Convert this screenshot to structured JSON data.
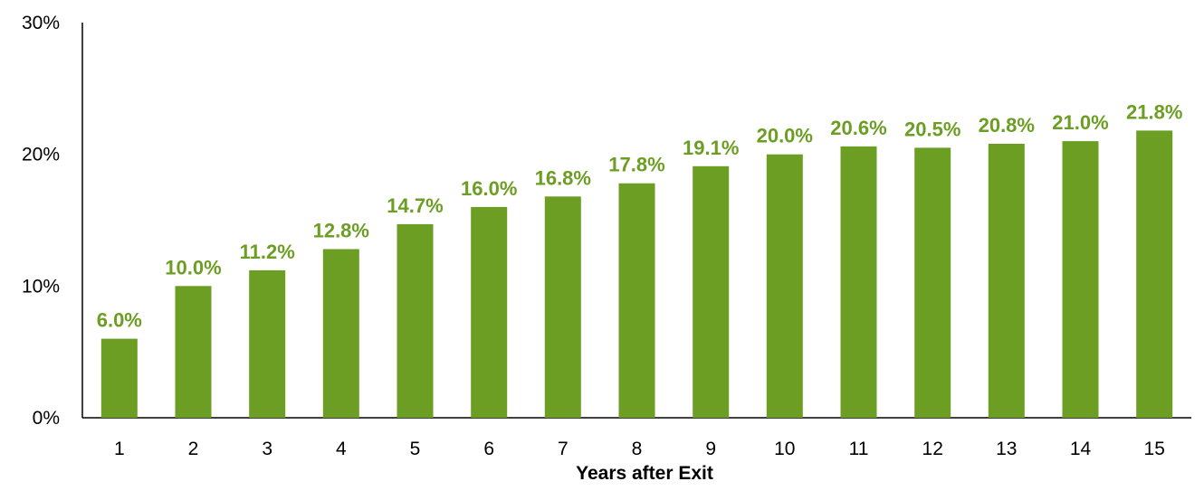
{
  "chart_data": {
    "type": "bar",
    "categories": [
      "1",
      "2",
      "3",
      "4",
      "5",
      "6",
      "7",
      "8",
      "9",
      "10",
      "11",
      "12",
      "13",
      "14",
      "15"
    ],
    "values": [
      6.0,
      10.0,
      11.2,
      12.8,
      14.7,
      16.0,
      16.8,
      17.8,
      19.1,
      20.0,
      20.6,
      20.5,
      20.8,
      21.0,
      21.8
    ],
    "data_labels": [
      "6.0%",
      "10.0%",
      "11.2%",
      "12.8%",
      "14.7%",
      "16.0%",
      "16.8%",
      "17.8%",
      "19.1%",
      "20.0%",
      "20.6%",
      "20.5%",
      "20.8%",
      "21.0%",
      "21.8%"
    ],
    "xlabel": "Years after Exit",
    "ylabel": "",
    "title": "",
    "ylim": [
      0,
      30
    ],
    "yticks": [
      0,
      10,
      20,
      30
    ],
    "ytick_labels": [
      "0%",
      "10%",
      "20%",
      "30%"
    ],
    "grid": false,
    "legend": "none",
    "colors": {
      "bar": "#6b9e22",
      "label": "#6b9e22",
      "axis": "#000000"
    }
  }
}
